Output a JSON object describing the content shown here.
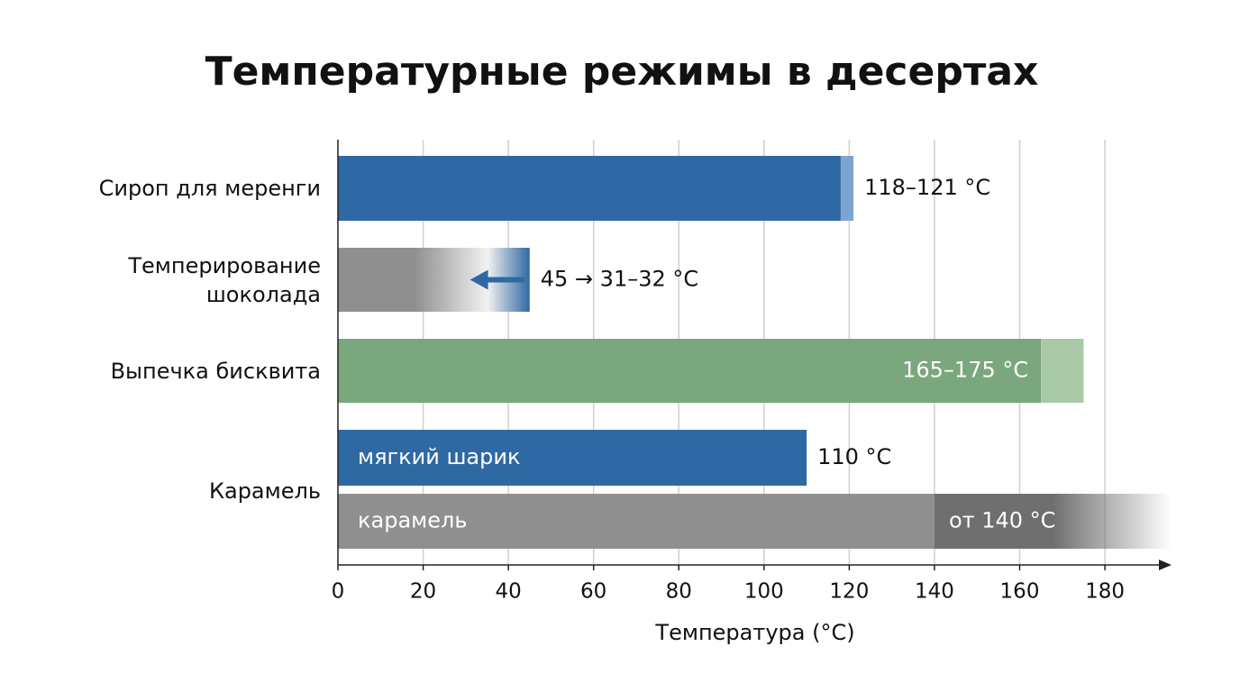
{
  "chart_data": {
    "type": "bar",
    "title": "Температурные режимы в десертах",
    "x_label": "Температура (°C)",
    "xlim": [
      0,
      195
    ],
    "xticks": [
      0,
      20,
      40,
      60,
      80,
      100,
      120,
      140,
      160,
      180
    ],
    "grid": true,
    "groups": [
      {
        "label": "Сироп для меренги",
        "range": [
          118,
          121
        ],
        "color": "#2f69a3",
        "range_color": "#7ea5cf",
        "value_label": "118–121 °C"
      },
      {
        "label": "Темперирование шоколада",
        "from": 45,
        "to": [
          31,
          32
        ],
        "color": "#8f8f8f",
        "arrow_color": "#2f69a3",
        "value_label": "45 → 31–32 °C"
      },
      {
        "label": "Выпечка бисквита",
        "range": [
          165,
          175
        ],
        "color": "#7aa77b",
        "range_color": "#a9c9a7",
        "value_label": "165–175 °C"
      },
      {
        "label": "Карамель",
        "bars": [
          {
            "name": "мягкий шарик",
            "value": 110,
            "color": "#2f69a3",
            "value_label": "110 °C"
          },
          {
            "name": "карамель",
            "from": 140,
            "color": "#8f8f8f",
            "range_color": "#6f6f6f",
            "value_label": "от 140 °C"
          }
        ]
      }
    ]
  }
}
